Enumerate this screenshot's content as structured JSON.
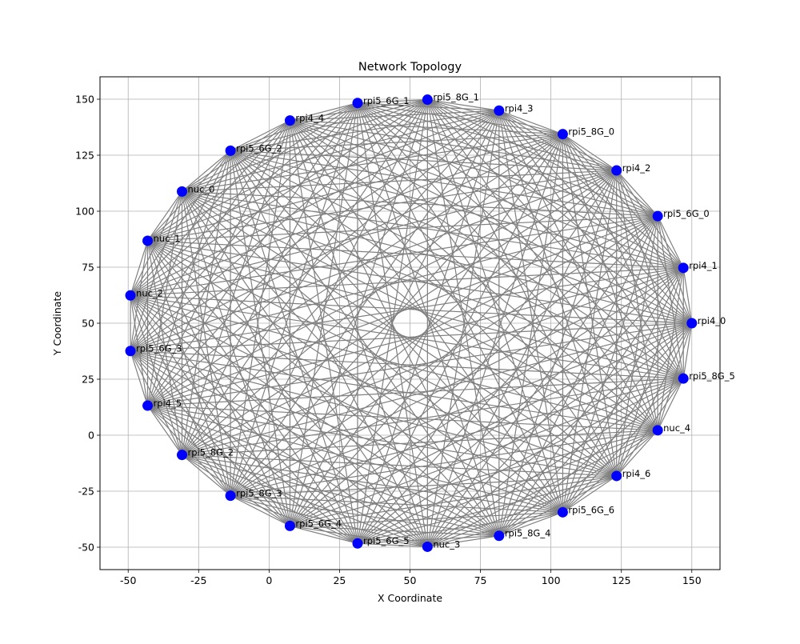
{
  "chart_data": {
    "type": "network",
    "title": "Network Topology",
    "xlabel": "X Coordinate",
    "ylabel": "Y Coordinate",
    "xlim": [
      -60,
      160
    ],
    "ylim": [
      -60,
      160
    ],
    "xticks": [
      -50,
      -25,
      0,
      25,
      50,
      75,
      100,
      125,
      150
    ],
    "yticks": [
      -50,
      -25,
      0,
      25,
      50,
      75,
      100,
      125,
      150
    ],
    "grid": true,
    "edges": "complete",
    "node_color": "#0000ff",
    "edge_color": "#808080",
    "nodes": [
      {
        "name": "rpi4_0",
        "x": 150.0,
        "y": 50.0
      },
      {
        "name": "rpi5_8G_5",
        "x": 147.0,
        "y": 25.3
      },
      {
        "name": "nuc_4",
        "x": 137.9,
        "y": 2.2
      },
      {
        "name": "rpi4_6",
        "x": 123.3,
        "y": -18.2
      },
      {
        "name": "rpi5_6G_6",
        "x": 104.2,
        "y": -34.4
      },
      {
        "name": "rpi5_8G_4",
        "x": 81.6,
        "y": -44.9
      },
      {
        "name": "nuc_3",
        "x": 56.2,
        "y": -49.8
      },
      {
        "name": "rpi5_6G_5",
        "x": 31.4,
        "y": -48.3
      },
      {
        "name": "rpi5_6G_4",
        "x": 7.4,
        "y": -40.5
      },
      {
        "name": "rpi5_8G_3",
        "x": -13.7,
        "y": -27.0
      },
      {
        "name": "rpi5_8G_2",
        "x": -30.9,
        "y": -8.8
      },
      {
        "name": "rpi4_5",
        "x": -43.1,
        "y": 13.2
      },
      {
        "name": "rpi5_6G_3",
        "x": -49.2,
        "y": 37.6
      },
      {
        "name": "nuc_2",
        "x": -49.2,
        "y": 62.4
      },
      {
        "name": "nuc_1",
        "x": -43.1,
        "y": 86.8
      },
      {
        "name": "nuc_0",
        "x": -30.9,
        "y": 108.8
      },
      {
        "name": "rpi5_6G_2",
        "x": -13.7,
        "y": 127.0
      },
      {
        "name": "rpi4_4",
        "x": 7.4,
        "y": 140.5
      },
      {
        "name": "rpi5_6G_1",
        "x": 31.4,
        "y": 148.3
      },
      {
        "name": "rpi5_8G_1",
        "x": 56.2,
        "y": 149.8
      },
      {
        "name": "rpi4_3",
        "x": 81.6,
        "y": 144.9
      },
      {
        "name": "rpi5_8G_0",
        "x": 104.2,
        "y": 134.4
      },
      {
        "name": "rpi4_2",
        "x": 123.3,
        "y": 118.2
      },
      {
        "name": "rpi5_6G_0",
        "x": 137.9,
        "y": 97.8
      },
      {
        "name": "rpi4_1",
        "x": 147.0,
        "y": 74.7
      }
    ]
  }
}
